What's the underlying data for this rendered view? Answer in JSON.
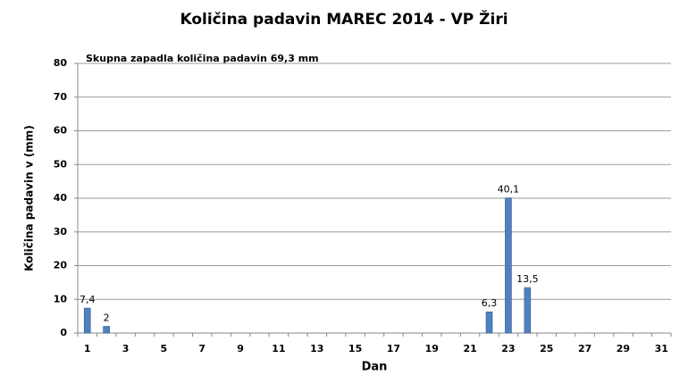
{
  "chart_data": {
    "type": "bar",
    "title": "Količina padavin  MAREC 2014 - VP Žiri",
    "annotation": "Skupna zapadla količina padavin 69,3 mm",
    "x_label": "Dan",
    "y_label": "Količina padavin v  (mm)",
    "categories": [
      "1",
      null,
      "3",
      null,
      "5",
      null,
      "7",
      null,
      "9",
      null,
      "11",
      null,
      "13",
      null,
      "15",
      null,
      "17",
      null,
      "19",
      null,
      "21",
      null,
      "23",
      null,
      "25",
      null,
      "27",
      null,
      "29",
      null,
      "31"
    ],
    "values": [
      7.4,
      2,
      0,
      0,
      0,
      0,
      0,
      0,
      0,
      0,
      0,
      0,
      0,
      0,
      0,
      0,
      0,
      0,
      0,
      0,
      0,
      6.3,
      40.1,
      13.5,
      0,
      0,
      0,
      0,
      0,
      0,
      0
    ],
    "value_labels": [
      "7,4",
      "2",
      null,
      null,
      null,
      null,
      null,
      null,
      null,
      null,
      null,
      null,
      null,
      null,
      null,
      null,
      null,
      null,
      null,
      null,
      null,
      "6,3",
      "40,1",
      "13,5",
      null,
      null,
      null,
      null,
      null,
      null,
      null
    ],
    "color": "#4f81bd",
    "ylim": [
      0,
      80
    ],
    "yticks": [
      0,
      10,
      20,
      30,
      40,
      50,
      60,
      70,
      80
    ],
    "grid": true
  }
}
